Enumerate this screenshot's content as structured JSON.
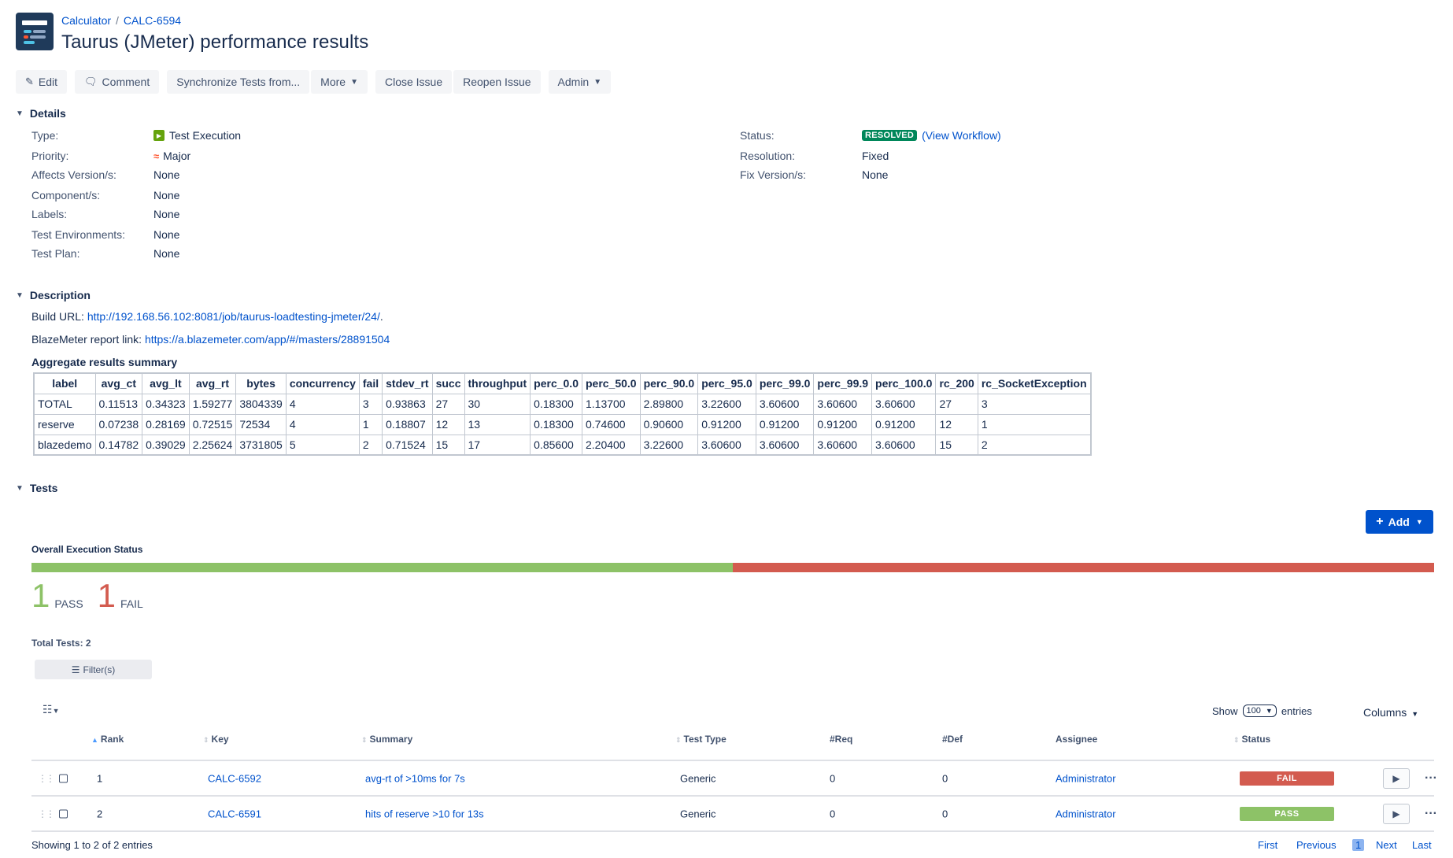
{
  "header": {
    "breadcrumb_project": "Calculator",
    "breadcrumb_sep": "/",
    "breadcrumb_issue": "CALC-6594",
    "title": "Taurus (JMeter) performance results"
  },
  "toolbar": {
    "edit": "Edit",
    "comment": "Comment",
    "synchronize": "Synchronize Tests from...",
    "more": "More",
    "close_issue": "Close Issue",
    "reopen_issue": "Reopen Issue",
    "admin": "Admin"
  },
  "details": {
    "heading": "Details",
    "type_label": "Type:",
    "type_value": "Test Execution",
    "priority_label": "Priority:",
    "priority_value": "Major",
    "affects_label": "Affects Version/s:",
    "affects_value": "None",
    "component_label": "Component/s:",
    "component_value": "None",
    "labels_label": "Labels:",
    "labels_value": "None",
    "env_label": "Test Environments:",
    "env_value": "None",
    "plan_label": "Test Plan:",
    "plan_value": "None",
    "status_label": "Status:",
    "status_value": "RESOLVED",
    "view_workflow": "(View Workflow)",
    "resolution_label": "Resolution:",
    "resolution_value": "Fixed",
    "fix_label": "Fix Version/s:",
    "fix_value": "None"
  },
  "description": {
    "heading": "Description",
    "build_label": "Build URL:",
    "build_url": "http://192.168.56.102:8081/job/taurus-loadtesting-jmeter/24/",
    "build_tail": ".",
    "blaze_label": "BlazeMeter report link:",
    "blaze_url": "https://a.blazemeter.com/app/#/masters/28891504",
    "agg_title": "Aggregate results summary"
  },
  "agg_table": {
    "headers": [
      "label",
      "avg_ct",
      "avg_lt",
      "avg_rt",
      "bytes",
      "concurrency",
      "fail",
      "stdev_rt",
      "succ",
      "throughput",
      "perc_0.0",
      "perc_50.0",
      "perc_90.0",
      "perc_95.0",
      "perc_99.0",
      "perc_99.9",
      "perc_100.0",
      "rc_200",
      "rc_SocketException"
    ],
    "rows": [
      [
        "TOTAL",
        "0.11513",
        "0.34323",
        "1.59277",
        "3804339",
        "4",
        "3",
        "0.93863",
        "27",
        "30",
        "0.18300",
        "1.13700",
        "2.89800",
        "3.22600",
        "3.60600",
        "3.60600",
        "3.60600",
        "27",
        "3"
      ],
      [
        "reserve",
        "0.07238",
        "0.28169",
        "0.72515",
        "72534",
        "4",
        "1",
        "0.18807",
        "12",
        "13",
        "0.18300",
        "0.74600",
        "0.90600",
        "0.91200",
        "0.91200",
        "0.91200",
        "0.91200",
        "12",
        "1"
      ],
      [
        "blazedemo",
        "0.14782",
        "0.39029",
        "2.25624",
        "3731805",
        "5",
        "2",
        "0.71524",
        "15",
        "17",
        "0.85600",
        "2.20400",
        "3.22600",
        "3.60600",
        "3.60600",
        "3.60600",
        "3.60600",
        "15",
        "2"
      ]
    ]
  },
  "tests": {
    "heading": "Tests",
    "add": "Add",
    "overall_label": "Overall Execution Status",
    "pass_fraction": 0.5,
    "pass_count": "1",
    "pass_label": "PASS",
    "fail_count": "1",
    "fail_label": "FAIL",
    "total_tests": "Total Tests: 2",
    "filter": "Filter(s)",
    "show": "Show",
    "show_value": "100",
    "entries": "entries",
    "columns": "Columns",
    "col_rank": "Rank",
    "col_key": "Key",
    "col_summary": "Summary",
    "col_test_type": "Test Type",
    "col_req": "#Req",
    "col_def": "#Def",
    "col_assignee": "Assignee",
    "col_status": "Status",
    "rows": [
      {
        "rank": "1",
        "key": "CALC-6592",
        "summary": "avg-rt of >10ms for 7s",
        "type": "Generic",
        "req": "0",
        "def": "0",
        "assignee": "Administrator",
        "status": "FAIL"
      },
      {
        "rank": "2",
        "key": "CALC-6591",
        "summary": "hits of reserve >10 for 13s",
        "type": "Generic",
        "req": "0",
        "def": "0",
        "assignee": "Administrator",
        "status": "PASS"
      }
    ],
    "showing": "Showing 1 to 2 of 2 entries",
    "first": "First",
    "previous": "Previous",
    "page": "1",
    "next": "Next",
    "last": "Last"
  },
  "colors": {
    "pass": "#8dc267",
    "fail": "#d35b4f",
    "resolved": "#00875a",
    "primary": "#0052cc"
  }
}
